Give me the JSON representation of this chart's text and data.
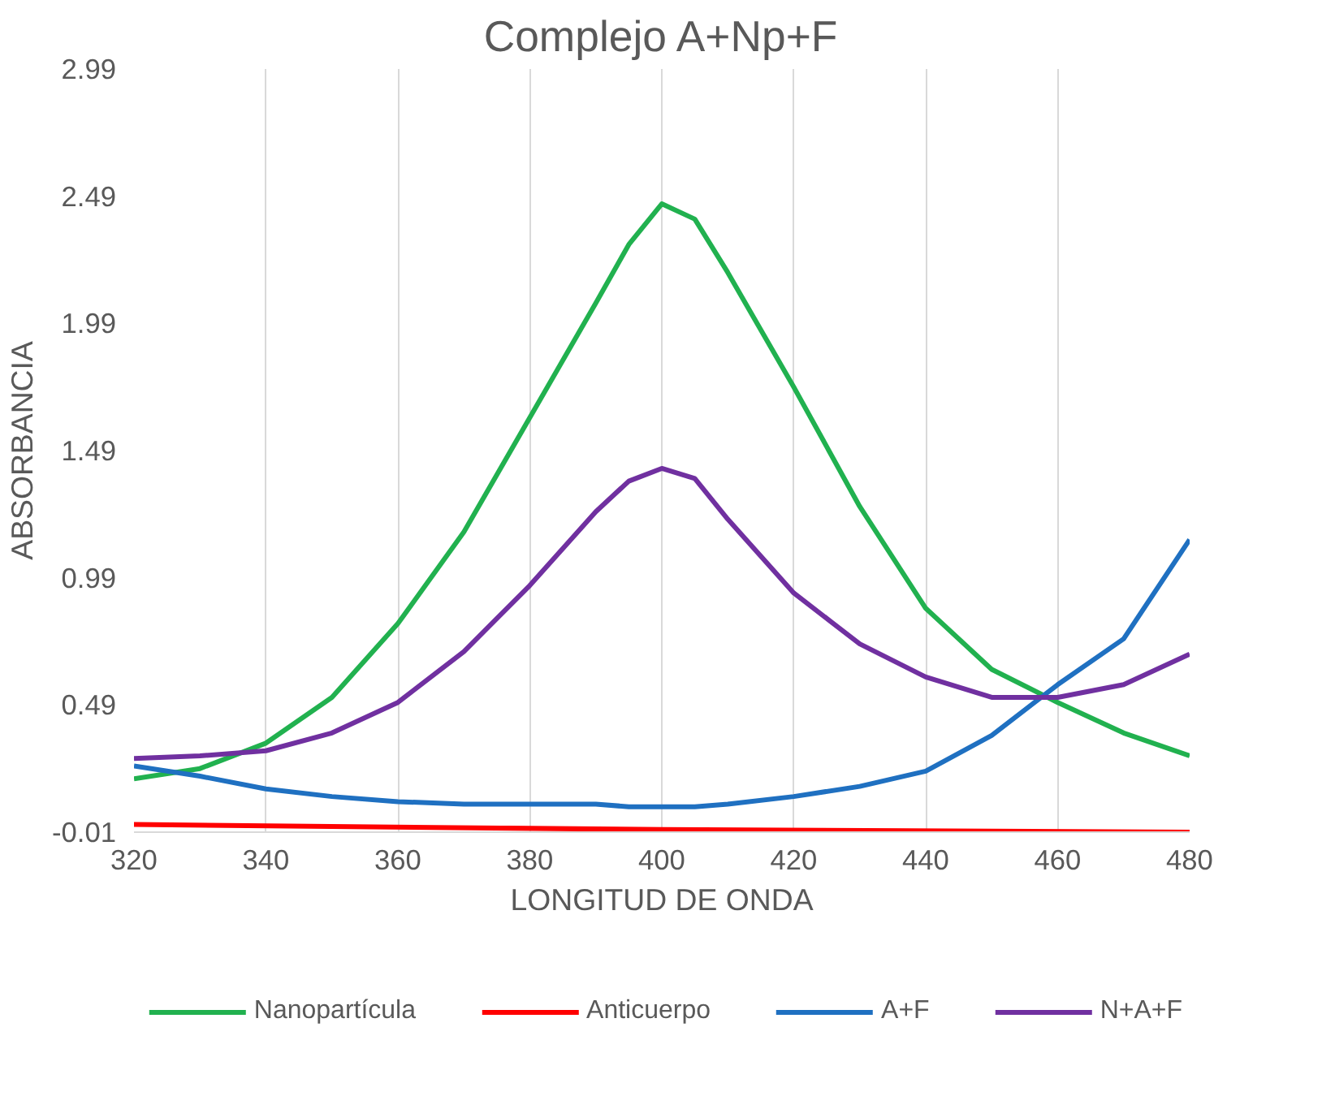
{
  "chart_data": {
    "type": "line",
    "title": "Complejo A+Np+F",
    "xlabel": "LONGITUD DE ONDA",
    "ylabel": "ABSORBANCIA",
    "x": [
      320,
      330,
      340,
      350,
      360,
      370,
      380,
      390,
      395,
      400,
      405,
      410,
      420,
      430,
      440,
      450,
      460,
      470,
      480
    ],
    "series": [
      {
        "name": "Nanopartícula",
        "color": "#21b14f",
        "values": [
          0.2,
          0.24,
          0.34,
          0.52,
          0.81,
          1.17,
          1.62,
          2.07,
          2.3,
          2.46,
          2.4,
          2.19,
          1.74,
          1.27,
          0.87,
          0.63,
          0.5,
          0.38,
          0.29
        ]
      },
      {
        "name": "Anticuerpo",
        "color": "#ff0000",
        "x": [
          320,
          400,
          480
        ],
        "values": [
          0.02,
          0.0,
          -0.01
        ]
      },
      {
        "name": "A+F",
        "color": "#1f70c1",
        "values": [
          0.25,
          0.21,
          0.16,
          0.13,
          0.11,
          0.1,
          0.1,
          0.1,
          0.09,
          0.09,
          0.09,
          0.1,
          0.13,
          0.17,
          0.23,
          0.37,
          0.57,
          0.75,
          1.14
        ]
      },
      {
        "name": "N+A+F",
        "color": "#7030a0",
        "values": [
          0.28,
          0.29,
          0.31,
          0.38,
          0.5,
          0.7,
          0.96,
          1.25,
          1.37,
          1.42,
          1.38,
          1.22,
          0.93,
          0.73,
          0.6,
          0.52,
          0.52,
          0.57,
          0.69
        ]
      }
    ],
    "xlim": [
      320,
      480
    ],
    "ylim": [
      -0.01,
      2.99
    ],
    "xticks": [
      320,
      340,
      360,
      380,
      400,
      420,
      440,
      460,
      480
    ],
    "yticks": [
      -0.01,
      0.49,
      0.99,
      1.49,
      1.99,
      2.49,
      2.99
    ],
    "grid": "x",
    "legend": "bottom",
    "line_style": "solid",
    "marker": "none"
  }
}
